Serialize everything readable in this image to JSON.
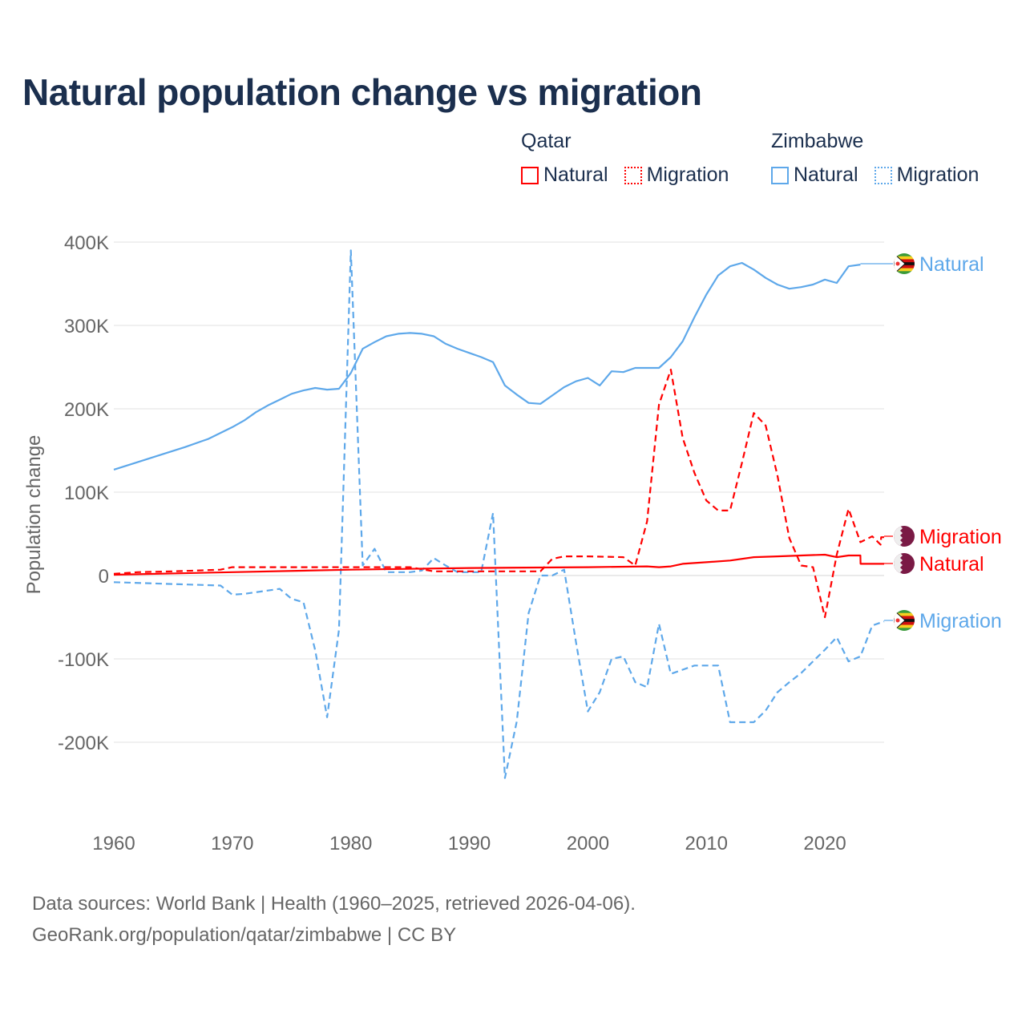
{
  "title": "Natural population change vs migration",
  "legend": {
    "groups": [
      {
        "name": "Qatar",
        "items": [
          {
            "label": "Natural",
            "style": "solid"
          },
          {
            "label": "Migration",
            "style": "dotted"
          }
        ],
        "color": "#ff0000"
      },
      {
        "name": "Zimbabwe",
        "items": [
          {
            "label": "Natural",
            "style": "solid"
          },
          {
            "label": "Migration",
            "style": "dotted"
          }
        ],
        "color": "#5ea8ea"
      }
    ]
  },
  "footer": {
    "line1": "Data sources: World Bank | Health (1960–2025, retrieved 2026-04-06).",
    "line2": "GeoRank.org/population/qatar/zimbabwe | CC BY"
  },
  "chart_data": {
    "type": "line",
    "title": "Natural population change vs migration",
    "xlabel": "",
    "ylabel": "Population change",
    "xlim": [
      1960,
      2025
    ],
    "ylim": [
      -300000,
      400000
    ],
    "xticks": [
      1960,
      1970,
      1980,
      1990,
      2000,
      2010,
      2020
    ],
    "xtick_labels": [
      "1960",
      "1970",
      "1980",
      "1990",
      "2000",
      "2010",
      "2020"
    ],
    "yticks": [
      -200000,
      -100000,
      0,
      100000,
      200000,
      300000,
      400000
    ],
    "ytick_labels": [
      "-200K",
      "-100K",
      "0",
      "100K",
      "200K",
      "300K",
      "400K"
    ],
    "grid": true,
    "legend_position": "top-right",
    "series": [
      {
        "name": "Zimbabwe Natural",
        "end_label": "Natural",
        "country": "Zimbabwe",
        "color": "#5ea8ea",
        "dash": "solid",
        "x": [
          1960,
          1962,
          1964,
          1966,
          1968,
          1970,
          1971,
          1972,
          1973,
          1974,
          1975,
          1976,
          1977,
          1978,
          1979,
          1980,
          1981,
          1982,
          1983,
          1984,
          1985,
          1986,
          1987,
          1988,
          1989,
          1990,
          1991,
          1992,
          1993,
          1994,
          1995,
          1996,
          1997,
          1998,
          1999,
          2000,
          2001,
          2002,
          2003,
          2004,
          2005,
          2006,
          2007,
          2008,
          2009,
          2010,
          2011,
          2012,
          2013,
          2014,
          2015,
          2016,
          2017,
          2018,
          2019,
          2020,
          2021,
          2022,
          2023
        ],
        "y": [
          127000,
          136000,
          145000,
          154000,
          164000,
          178000,
          186000,
          196000,
          204000,
          211000,
          218000,
          222000,
          225000,
          223000,
          224000,
          243000,
          272000,
          280000,
          287000,
          290000,
          291000,
          290000,
          287000,
          278000,
          272000,
          267000,
          262000,
          256000,
          228000,
          217000,
          207000,
          206000,
          216000,
          226000,
          233000,
          237000,
          228000,
          245000,
          244000,
          249000,
          249000,
          249000,
          262000,
          281000,
          310000,
          337000,
          360000,
          371000,
          375000,
          367000,
          357000,
          349000,
          344000,
          346000,
          349000,
          355000,
          351000,
          371000,
          373000
        ]
      },
      {
        "name": "Zimbabwe Migration",
        "end_label": "Migration",
        "country": "Zimbabwe",
        "color": "#5ea8ea",
        "dash": "dashed",
        "x": [
          1960,
          1969,
          1970,
          1971,
          1972,
          1973,
          1974,
          1975,
          1976,
          1977,
          1978,
          1979,
          1980,
          1981,
          1982,
          1983,
          1984,
          1985,
          1986,
          1987,
          1988,
          1989,
          1990,
          1991,
          1992,
          1993,
          1994,
          1995,
          1996,
          1997,
          1998,
          1999,
          2000,
          2001,
          2002,
          2003,
          2004,
          2005,
          2006,
          2007,
          2008,
          2009,
          2010,
          2011,
          2012,
          2013,
          2014,
          2015,
          2016,
          2017,
          2018,
          2019,
          2020,
          2021,
          2022,
          2023,
          2024,
          2025
        ],
        "y": [
          -8000,
          -12000,
          -23000,
          -22000,
          -20000,
          -18000,
          -16000,
          -28000,
          -32000,
          -90000,
          -170000,
          -65000,
          390000,
          12000,
          32000,
          4000,
          4000,
          4000,
          6000,
          21000,
          12000,
          4000,
          4000,
          4000,
          75000,
          -243000,
          -175000,
          -45000,
          0,
          0,
          7000,
          -80000,
          -163000,
          -140000,
          -100000,
          -97000,
          -128000,
          -134000,
          -58000,
          -118000,
          -113000,
          -108000,
          -108000,
          -108000,
          -176000,
          -176000,
          -176000,
          -162000,
          -140000,
          -128000,
          -117000,
          -103000,
          -89000,
          -74000,
          -103000,
          -97000,
          -60000,
          -55000
        ]
      },
      {
        "name": "Qatar Natural",
        "end_label": "Natural",
        "country": "Qatar",
        "color": "#ff0000",
        "dash": "solid",
        "x": [
          1960,
          1970,
          1980,
          1990,
          2000,
          2005,
          2006,
          2007,
          2008,
          2010,
          2012,
          2014,
          2016,
          2018,
          2020,
          2021,
          2022,
          2023,
          2023.01,
          2025
        ],
        "y": [
          1000,
          4000,
          7000,
          9000,
          10000,
          11000,
          10000,
          11000,
          14000,
          16000,
          18000,
          22000,
          23000,
          24000,
          25000,
          22000,
          24000,
          24000,
          14000,
          14000
        ]
      },
      {
        "name": "Qatar Migration",
        "end_label": "Migration",
        "country": "Qatar",
        "color": "#ff0000",
        "dash": "dashed",
        "x": [
          1960,
          1962,
          1965,
          1969,
          1970,
          1975,
          1980,
          1985,
          1987,
          1990,
          1996,
          1997,
          1998,
          2000,
          2003,
          2004,
          2005,
          2006,
          2007,
          2008,
          2009,
          2010,
          2011,
          2012,
          2013,
          2014,
          2015,
          2016,
          2017,
          2018,
          2019,
          2020,
          2021,
          2022,
          2023,
          2024,
          2024.7,
          2024.75,
          2025
        ],
        "y": [
          2000,
          4000,
          5000,
          7000,
          10000,
          10000,
          10000,
          10000,
          5000,
          5000,
          5000,
          20000,
          23000,
          23000,
          22000,
          12000,
          65000,
          205000,
          247000,
          165000,
          123000,
          90000,
          78000,
          78000,
          135000,
          195000,
          180000,
          120000,
          45000,
          12000,
          10000,
          -50000,
          25000,
          80000,
          40000,
          47000,
          37000,
          46000,
          46000
        ]
      }
    ]
  }
}
